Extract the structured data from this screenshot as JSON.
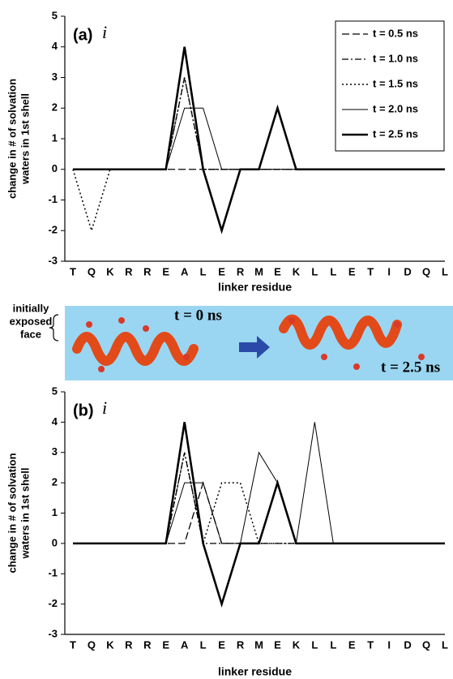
{
  "chart_data": [
    {
      "type": "line",
      "panel": "(a)",
      "marker": "i",
      "xlabel": "linker residue",
      "ylabel": [
        "change in # of solvation",
        "waters in 1st shell"
      ],
      "categories": [
        "T",
        "Q",
        "K",
        "R",
        "R",
        "E",
        "A",
        "L",
        "E",
        "R",
        "M",
        "E",
        "K",
        "L",
        "L",
        "E",
        "T",
        "I",
        "D",
        "Q",
        "L"
      ],
      "ylim": [
        -3,
        5
      ],
      "yticks": [
        -3,
        -2,
        -1,
        0,
        1,
        2,
        3,
        4,
        5
      ],
      "legend": "upper right",
      "series": [
        {
          "name": "t = 0.5 ns",
          "color": "#000000",
          "style": "dashed",
          "values": [
            0,
            0,
            0,
            0,
            0,
            0,
            0,
            0,
            0,
            0,
            0,
            0,
            0,
            0,
            0,
            0,
            0,
            0,
            0,
            0,
            0
          ]
        },
        {
          "name": "t = 1.0 ns",
          "color": "#000000",
          "style": "dashdot",
          "values": [
            0,
            0,
            0,
            0,
            0,
            0,
            3,
            0,
            0,
            0,
            0,
            0,
            0,
            0,
            0,
            0,
            0,
            0,
            0,
            0,
            0
          ]
        },
        {
          "name": "t = 1.5 ns",
          "color": "#000000",
          "style": "dotted",
          "values": [
            0,
            -2,
            0,
            0,
            0,
            0,
            3,
            0,
            0,
            0,
            0,
            0,
            0,
            0,
            0,
            0,
            0,
            0,
            0,
            0,
            0
          ]
        },
        {
          "name": "t = 2.0 ns",
          "color": "#000000",
          "style": "solid",
          "values": [
            0,
            0,
            0,
            0,
            0,
            0,
            2,
            2,
            0,
            0,
            0,
            0,
            0,
            0,
            0,
            0,
            0,
            0,
            0,
            0,
            0
          ]
        },
        {
          "name": "t = 2.5 ns",
          "color": "#000000",
          "style": "thick",
          "values": [
            0,
            0,
            0,
            0,
            0,
            0,
            4,
            0,
            -2,
            0,
            0,
            2,
            0,
            0,
            0,
            0,
            0,
            0,
            0,
            0,
            0
          ]
        }
      ]
    },
    {
      "type": "line",
      "panel": "(b)",
      "marker": "i",
      "xlabel": "linker residue",
      "ylabel": [
        "change in # of solvation",
        "waters in 1st shell"
      ],
      "categories": [
        "T",
        "Q",
        "K",
        "R",
        "R",
        "E",
        "A",
        "L",
        "E",
        "R",
        "M",
        "E",
        "K",
        "L",
        "L",
        "E",
        "T",
        "I",
        "D",
        "Q",
        "L"
      ],
      "ylim": [
        -3,
        5
      ],
      "yticks": [
        -3,
        -2,
        -1,
        0,
        1,
        2,
        3,
        4,
        5
      ],
      "series": [
        {
          "color": "#000000",
          "style": "dashed",
          "values": [
            0,
            0,
            0,
            0,
            0,
            0,
            0,
            2,
            0,
            0,
            0,
            2,
            0,
            0,
            0,
            0,
            0,
            0,
            0,
            0,
            0
          ]
        },
        {
          "color": "#000000",
          "style": "dashdot",
          "values": [
            0,
            0,
            0,
            0,
            0,
            0,
            3,
            0,
            0,
            0,
            0,
            0,
            0,
            0,
            0,
            0,
            0,
            0,
            0,
            0,
            0
          ]
        },
        {
          "color": "#000000",
          "style": "dotted",
          "values": [
            0,
            0,
            0,
            0,
            0,
            0,
            3,
            0,
            2,
            2,
            0,
            0,
            0,
            0,
            0,
            0,
            0,
            0,
            0,
            0,
            0
          ]
        },
        {
          "color": "#000000",
          "style": "solid",
          "values": [
            0,
            0,
            0,
            0,
            0,
            0,
            2,
            2,
            0,
            0,
            3,
            2,
            0,
            4,
            0,
            0,
            0,
            0,
            0,
            0,
            0
          ]
        },
        {
          "color": "#000000",
          "style": "thick",
          "values": [
            0,
            0,
            0,
            0,
            0,
            0,
            4,
            0,
            -2,
            0,
            0,
            2,
            0,
            0,
            0,
            0,
            0,
            0,
            0,
            0,
            0
          ]
        }
      ]
    }
  ],
  "illustration": {
    "face_label": [
      "initially",
      "exposed",
      "face"
    ],
    "start_label": "t = 0 ns",
    "end_label": "t = 2.5 ns"
  }
}
